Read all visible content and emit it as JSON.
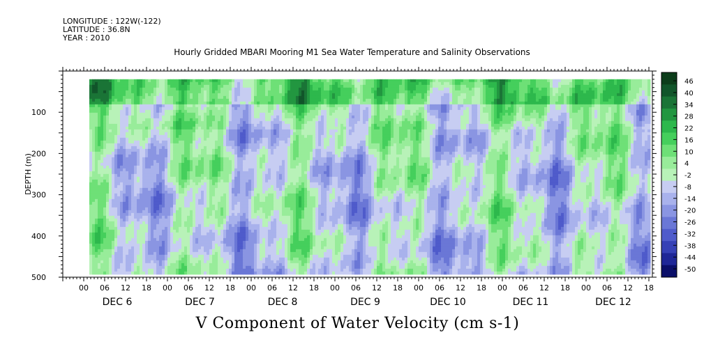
{
  "header": {
    "longitude": "LONGITUDE : 122W(-122)",
    "latitude": "LATITUDE : 36.8N",
    "year": "YEAR : 2010"
  },
  "chart_data": {
    "type": "heatmap",
    "title": "Hourly Gridded MBARI Mooring M1 Sea Water Temperature and Salinity Observations",
    "xlabel": "V Component of Water Velocity (cm s-1)",
    "ylabel": "DEPTH (m)",
    "ylim": [
      500,
      0
    ],
    "y_ticks": [
      100,
      200,
      300,
      400,
      500
    ],
    "hour_ticks": [
      "00",
      "06",
      "12",
      "18",
      "00",
      "06",
      "12",
      "18",
      "00",
      "06",
      "12",
      "18",
      "00",
      "06",
      "12",
      "18",
      "00",
      "06",
      "12",
      "18",
      "00",
      "06",
      "12",
      "18",
      "00",
      "06",
      "12",
      "18"
    ],
    "day_labels": [
      "DEC  6",
      "DEC  7",
      "DEC  8",
      "DEC  9",
      "DEC 10",
      "DEC 11",
      "DEC 12"
    ],
    "data_depth_range": [
      20,
      490
    ],
    "colorbar": {
      "levels": [
        "46",
        "40",
        "34",
        "28",
        "22",
        "16",
        "10",
        "4",
        "-2",
        "-8",
        "-14",
        "-20",
        "-26",
        "-32",
        "-38",
        "-44",
        "-50"
      ],
      "colors": [
        "#0c3d1a",
        "#11552a",
        "#1a7436",
        "#229640",
        "#2db84c",
        "#45cf5c",
        "#6ee077",
        "#98ec9a",
        "#b8f2b8",
        "#c7cdf2",
        "#a9b2ec",
        "#8a95e2",
        "#6a77d6",
        "#4f5bcb",
        "#3641b6",
        "#1f2797",
        "#0b0f69"
      ]
    },
    "grid": false,
    "legend": "right"
  }
}
